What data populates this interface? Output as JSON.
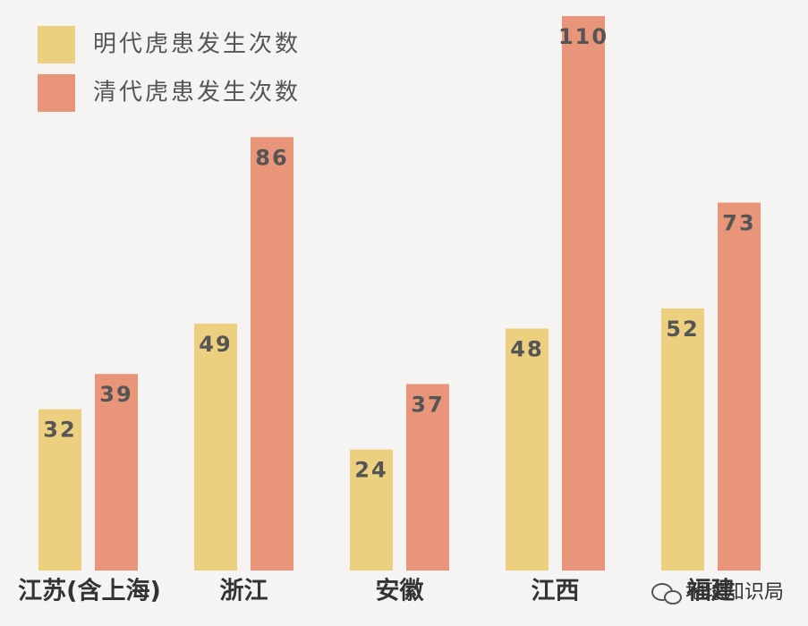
{
  "chart_data": {
    "type": "bar",
    "categories": [
      "江苏(含上海)",
      "浙江",
      "安徽",
      "江西",
      "福建"
    ],
    "series": [
      {
        "name": "明代虎患发生次数",
        "color": "#edd07f",
        "values": [
          32,
          49,
          24,
          48,
          52
        ]
      },
      {
        "name": "清代虎患发生次数",
        "color": "#e8957a",
        "values": [
          39,
          86,
          37,
          110,
          73
        ]
      }
    ],
    "ylim": [
      0,
      110
    ],
    "watermark": "地球知识局"
  }
}
